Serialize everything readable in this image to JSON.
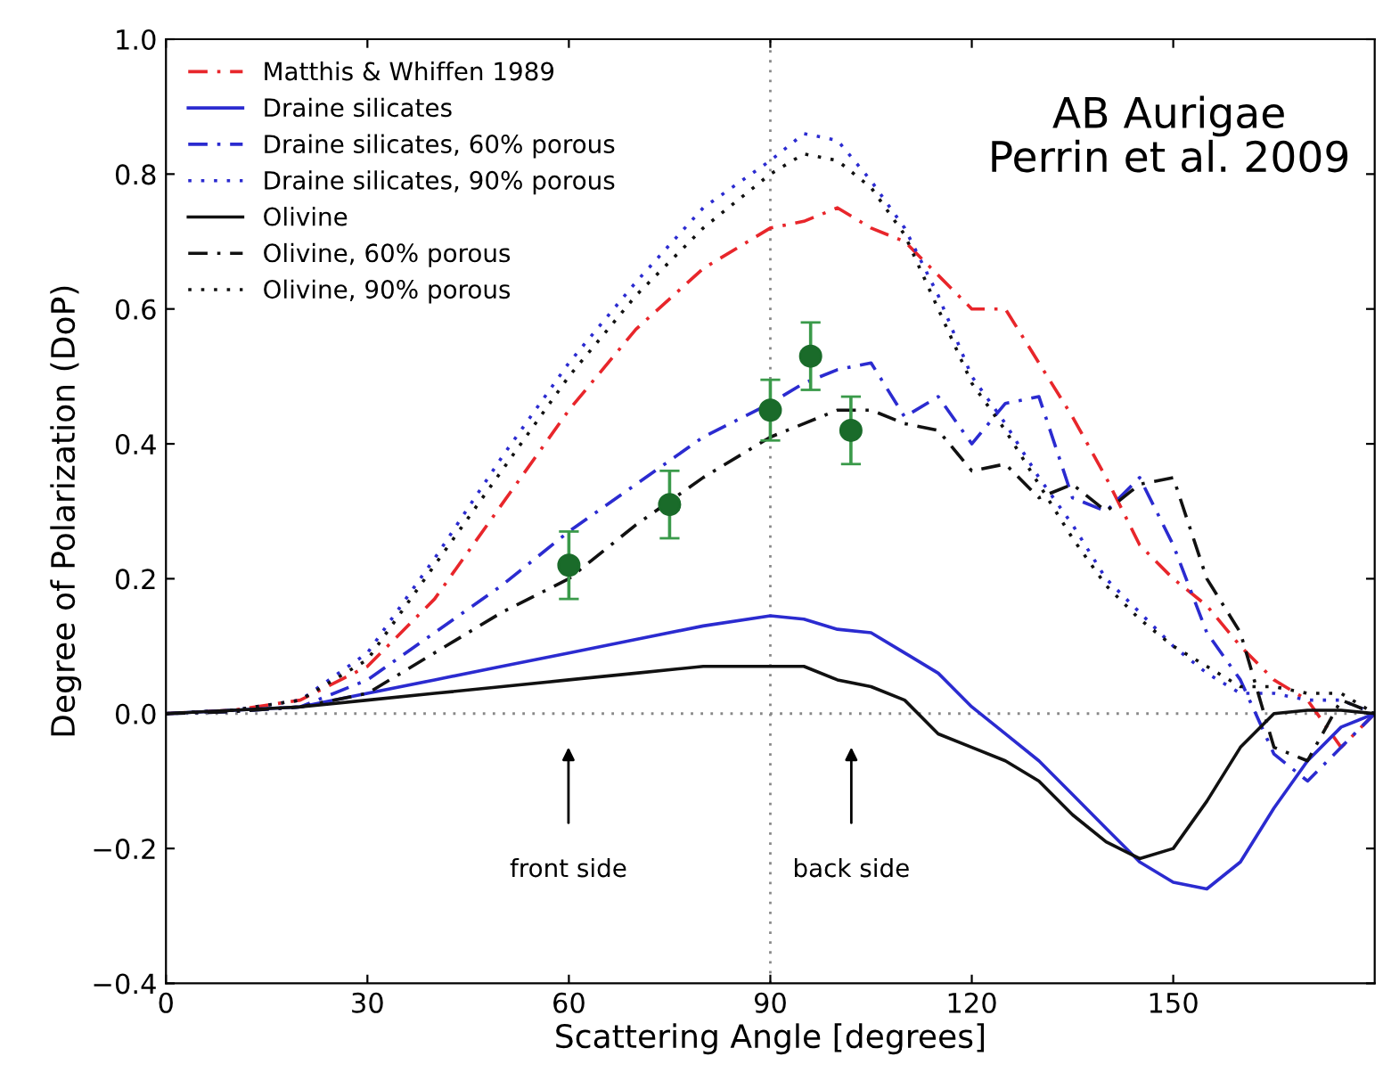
{
  "chart_data": {
    "type": "line",
    "xlabel": "Scattering Angle [degrees]",
    "ylabel": "Degree of Polarization (DoP)",
    "xlim": [
      0,
      180
    ],
    "xticks": [
      0,
      30,
      60,
      90,
      120,
      150
    ],
    "ylim": [
      -0.4,
      1.0
    ],
    "yticks": [
      {
        "value": -0.4,
        "label": "−0.4"
      },
      {
        "value": -0.2,
        "label": "−0.2"
      },
      {
        "value": 0,
        "label": "0.0"
      },
      {
        "value": 0.2,
        "label": "0.2"
      },
      {
        "value": 0.4,
        "label": "0.4"
      },
      {
        "value": 0.6,
        "label": "0.6"
      },
      {
        "value": 0.8,
        "label": "0.8"
      },
      {
        "value": 1,
        "label": "1.0"
      }
    ],
    "grid": false,
    "legend": "top left",
    "x": [
      0,
      10,
      20,
      30,
      40,
      50,
      60,
      70,
      80,
      90,
      95,
      100,
      105,
      110,
      115,
      120,
      125,
      130,
      135,
      140,
      145,
      150,
      155,
      160,
      165,
      170,
      175,
      180
    ],
    "series": [
      {
        "name": "Matthis & Whiffen 1989",
        "color": "#e8262b",
        "line_style": "dashed",
        "values": [
          0,
          0.005,
          0.02,
          0.07,
          0.17,
          0.31,
          0.45,
          0.57,
          0.66,
          0.72,
          0.73,
          0.75,
          0.72,
          0.7,
          0.65,
          0.6,
          0.6,
          0.52,
          0.44,
          0.35,
          0.25,
          0.2,
          0.16,
          0.1,
          0.05,
          0.02,
          -0.05,
          0
        ]
      },
      {
        "name": "Draine silicates",
        "color": "#2b2bd0",
        "line_style": "solid",
        "values": [
          0,
          0.005,
          0.01,
          0.03,
          0.05,
          0.07,
          0.09,
          0.11,
          0.13,
          0.145,
          0.14,
          0.125,
          0.12,
          0.09,
          0.06,
          0.01,
          -0.03,
          -0.07,
          -0.12,
          -0.17,
          -0.22,
          -0.25,
          -0.26,
          -0.22,
          -0.14,
          -0.07,
          -0.02,
          0
        ]
      },
      {
        "name": "Draine silicates, 60% porous",
        "color": "#2b2bd0",
        "line_style": "dashed",
        "values": [
          0,
          0.003,
          0.01,
          0.05,
          0.12,
          0.19,
          0.27,
          0.34,
          0.41,
          0.46,
          0.49,
          0.51,
          0.52,
          0.44,
          0.47,
          0.4,
          0.46,
          0.47,
          0.32,
          0.3,
          0.35,
          0.25,
          0.12,
          0.05,
          -0.06,
          -0.1,
          -0.05,
          0
        ]
      },
      {
        "name": "Draine silicates, 90% porous",
        "color": "#2b2bd0",
        "line_style": "dotted",
        "values": [
          0,
          0.005,
          0.02,
          0.09,
          0.23,
          0.38,
          0.52,
          0.64,
          0.75,
          0.82,
          0.86,
          0.85,
          0.79,
          0.72,
          0.62,
          0.5,
          0.43,
          0.35,
          0.28,
          0.2,
          0.15,
          0.1,
          0.06,
          0.03,
          0.03,
          0.02,
          0.02,
          0
        ]
      },
      {
        "name": "Olivine",
        "color": "#111111",
        "line_style": "solid",
        "values": [
          0,
          0.005,
          0.01,
          0.02,
          0.03,
          0.04,
          0.05,
          0.06,
          0.07,
          0.07,
          0.07,
          0.05,
          0.04,
          0.02,
          -0.03,
          -0.05,
          -0.07,
          -0.1,
          -0.15,
          -0.19,
          -0.215,
          -0.2,
          -0.13,
          -0.05,
          0.0,
          0.005,
          0.005,
          0
        ]
      },
      {
        "name": "Olivine, 60% porous",
        "color": "#111111",
        "line_style": "dashed",
        "values": [
          0,
          0.003,
          0.01,
          0.03,
          0.09,
          0.15,
          0.2,
          0.28,
          0.35,
          0.41,
          0.43,
          0.45,
          0.45,
          0.43,
          0.42,
          0.36,
          0.37,
          0.32,
          0.34,
          0.3,
          0.34,
          0.35,
          0.2,
          0.12,
          -0.05,
          -0.07,
          0.02,
          0
        ]
      },
      {
        "name": "Olivine, 90% porous",
        "color": "#111111",
        "line_style": "dotted",
        "values": [
          0,
          0.005,
          0.02,
          0.08,
          0.22,
          0.36,
          0.5,
          0.62,
          0.72,
          0.8,
          0.83,
          0.82,
          0.78,
          0.71,
          0.6,
          0.49,
          0.42,
          0.34,
          0.26,
          0.19,
          0.14,
          0.1,
          0.07,
          0.04,
          0.04,
          0.03,
          0.03,
          0
        ]
      },
      {
        "type": "scatter",
        "color": "#1a6b2a",
        "marker": "circle",
        "x": [
          60,
          75,
          90,
          96,
          102
        ],
        "values": [
          0.22,
          0.31,
          0.45,
          0.53,
          0.42
        ],
        "errors": [
          0.05,
          0.05,
          0.045,
          0.05,
          0.05
        ]
      }
    ],
    "ref_lines": [
      {
        "axis": "x",
        "value": 90,
        "color": "#888888",
        "line_style": "dotted"
      },
      {
        "axis": "y",
        "value": 0,
        "color": "#888888",
        "line_style": "dotted"
      }
    ],
    "annotations": [
      "front side",
      "back side",
      "AB Aurigae\nPerrin et al. 2009"
    ]
  }
}
